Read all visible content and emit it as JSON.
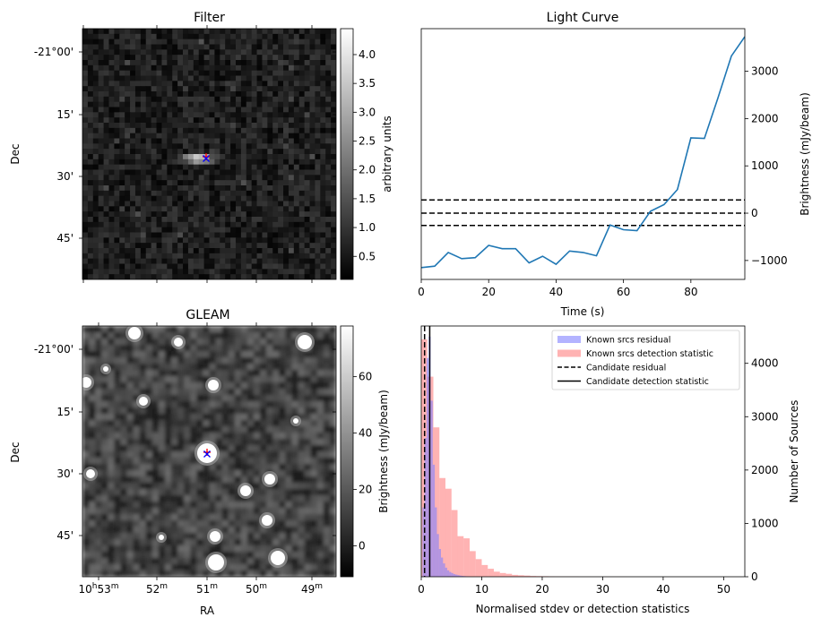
{
  "chart_data": [
    {
      "type": "heatmap",
      "title": "Filter",
      "ylabel": "Dec",
      "yticks": [
        "-21°00'",
        "15'",
        "30'",
        "45'"
      ],
      "colorbar": {
        "label": "arbitrary units",
        "ticks": [
          "0.5",
          "1.0",
          "1.5",
          "2.0",
          "2.5",
          "3.0",
          "3.5",
          "4.0"
        ],
        "range": [
          0.1,
          4.45
        ],
        "cmap": "gray"
      },
      "markers": [
        {
          "label": "+",
          "color": "#ff0000"
        },
        {
          "label": "×",
          "color": "#0000ff"
        }
      ]
    },
    {
      "type": "line",
      "title": "Light Curve",
      "xlabel": "Time (s)",
      "ylabel": "Brightness (mJy/beam)",
      "xlim": [
        0,
        96
      ],
      "ylim": [
        -1400,
        3900
      ],
      "xticks": [
        "0",
        "20",
        "40",
        "60",
        "80"
      ],
      "yticks": [
        "-1000",
        "0",
        "1000",
        "2000",
        "3000"
      ],
      "series": [
        {
          "color": "#1f77b4",
          "x": [
            0,
            4,
            8,
            12,
            16,
            20,
            24,
            28,
            32,
            36,
            40,
            44,
            48,
            52,
            56,
            60,
            64,
            68,
            72,
            76,
            80,
            84,
            88,
            92,
            96
          ],
          "y": [
            -1150,
            -1120,
            -830,
            -960,
            -940,
            -680,
            -750,
            -750,
            -1050,
            -910,
            -1080,
            -800,
            -830,
            -900,
            -250,
            -350,
            -370,
            40,
            180,
            500,
            1590,
            1580,
            2430,
            3320,
            3730
          ]
        }
      ],
      "hlines": [
        {
          "y": 280,
          "style": "dashed"
        },
        {
          "y": 0,
          "style": "dashed"
        },
        {
          "y": -260,
          "style": "dashed"
        }
      ]
    },
    {
      "type": "heatmap",
      "title": "GLEAM",
      "xlabel": "RA",
      "ylabel": "Dec",
      "yticks": [
        "-21°00'",
        "15'",
        "30'",
        "45'"
      ],
      "xticks": [
        {
          "base": "10",
          "sup1": "h",
          "main": "53",
          "sup2": "m"
        },
        {
          "base": "",
          "sup1": "",
          "main": "52",
          "sup2": "m"
        },
        {
          "base": "",
          "sup1": "",
          "main": "51",
          "sup2": "m"
        },
        {
          "base": "",
          "sup1": "",
          "main": "50",
          "sup2": "m"
        },
        {
          "base": "",
          "sup1": "",
          "main": "49",
          "sup2": "m"
        }
      ],
      "colorbar": {
        "label": "Brightness (mJy/beam)",
        "ticks": [
          "0",
          "20",
          "40",
          "60"
        ],
        "range": [
          -11,
          78
        ],
        "cmap": "gray"
      },
      "markers": [
        {
          "label": "+",
          "color": "#ff0000"
        },
        {
          "label": "×",
          "color": "#0000ff"
        }
      ]
    },
    {
      "type": "bar",
      "xlabel": "Normalised stdev or detection statistics",
      "ylabel": "Number of Sources",
      "xlim": [
        0,
        53.5
      ],
      "ylim": [
        0,
        4700
      ],
      "xticks": [
        "0",
        "10",
        "20",
        "30",
        "40",
        "50"
      ],
      "yticks": [
        "0",
        "1000",
        "2000",
        "3000",
        "4000"
      ],
      "legend": {
        "placement": "top-right",
        "entries": [
          {
            "label": "Known srcs residual",
            "color": "#b3b3ff",
            "kind": "patch"
          },
          {
            "label": "Known srcs detection statistic",
            "color": "#ffb3b3",
            "kind": "patch"
          },
          {
            "label": "Candidate residual",
            "kind": "dashed-line"
          },
          {
            "label": "Candidate detection statistic",
            "kind": "solid-line"
          }
        ]
      },
      "series": [
        {
          "name": "Known srcs residual",
          "color": "#8080ff",
          "bin_width": 0.34,
          "x_start": 0.2,
          "values": [
            1300,
            2600,
            4100,
            4500,
            3300,
            2100,
            1300,
            800,
            520,
            360,
            250,
            170,
            120,
            90,
            70,
            50,
            40,
            30,
            22,
            16,
            12,
            8,
            6
          ]
        },
        {
          "name": "Known srcs detection statistic",
          "color": "#ff8080",
          "bin_width": 1.0,
          "x_start": 0.0,
          "values": [
            4450,
            3750,
            2800,
            1850,
            1650,
            1250,
            760,
            720,
            480,
            330,
            220,
            150,
            95,
            70,
            55,
            35,
            28,
            22,
            15,
            12,
            10,
            8,
            5,
            4,
            3,
            3,
            2,
            2,
            2,
            1,
            1,
            1,
            1,
            1,
            0,
            0,
            0,
            0,
            0,
            0,
            0,
            0,
            0,
            0,
            0,
            0,
            0,
            0,
            0,
            0,
            0,
            0,
            0
          ]
        }
      ],
      "vlines": [
        {
          "name": "Candidate residual",
          "x": 0.55,
          "style": "dashed"
        },
        {
          "name": "Candidate detection statistic",
          "x": 1.4,
          "style": "solid"
        }
      ]
    }
  ]
}
